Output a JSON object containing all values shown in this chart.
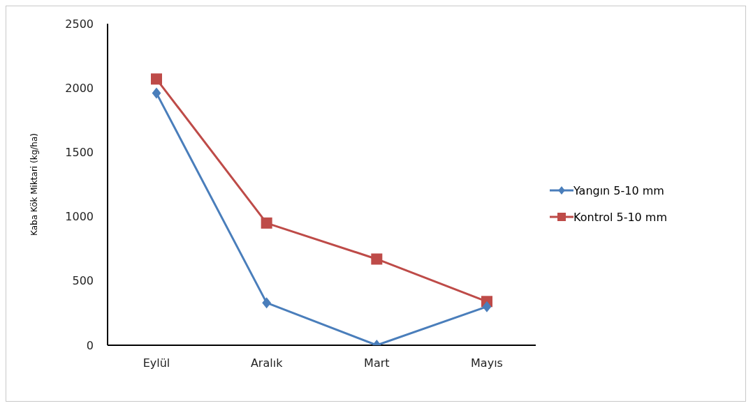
{
  "chart_data": {
    "type": "line",
    "ylabel": "Kaba Kök Miktari (kg/ha)",
    "categories": [
      "Eylül",
      "Aralık",
      "Mart",
      "Mayıs"
    ],
    "series": [
      {
        "name": "Yangın 5-10 mm",
        "color": "#4a7ebb",
        "marker": "diamond",
        "values": [
          1960,
          330,
          0,
          300
        ]
      },
      {
        "name": "Kontrol 5-10 mm",
        "color": "#be4b48",
        "marker": "square",
        "values": [
          2070,
          950,
          670,
          340
        ]
      }
    ],
    "ylim": [
      0,
      2500
    ],
    "yticks": [
      0,
      500,
      1000,
      1500,
      2000,
      2500
    ],
    "grid": false,
    "legend": "right",
    "line_style": "solid"
  }
}
